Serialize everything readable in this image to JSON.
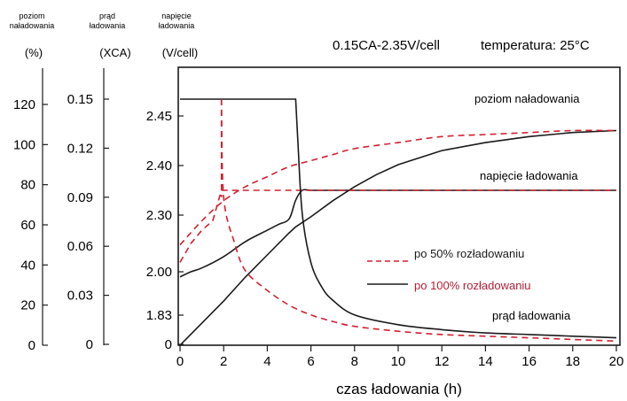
{
  "chart_data": {
    "type": "line",
    "title": "0.15CA-2.35V/cell",
    "temperature_label": "temperatura: 25°C",
    "xlabel": "czas ładowania (h)",
    "x_ticks": [
      "0",
      "2",
      "4",
      "6",
      "8",
      "10",
      "12",
      "14",
      "16",
      "18",
      "20"
    ],
    "xlim": [
      0,
      20
    ],
    "grid": false,
    "axes": {
      "charge_level": {
        "header": [
          "poziom",
          "naładowania"
        ],
        "unit": "(%)",
        "ticks": [
          "120",
          "100",
          "80",
          "60",
          "40",
          "20",
          "0"
        ],
        "values": [
          120,
          100,
          80,
          60,
          40,
          20,
          0
        ]
      },
      "charge_current": {
        "header": [
          "prąd",
          "ładowania"
        ],
        "unit": "(XCA)",
        "ticks": [
          "0.15",
          "0.12",
          "0.09",
          "0.06",
          "0.03",
          "0"
        ],
        "values": [
          0.15,
          0.12,
          0.09,
          0.06,
          0.03,
          0
        ]
      },
      "charge_voltage": {
        "header": [
          "napięcie",
          "ładowania"
        ],
        "unit": "(V/cell)",
        "ticks": [
          "2.45",
          "2.40",
          "2.30",
          "2.00",
          "1.83",
          "0"
        ],
        "values": [
          2.45,
          2.4,
          2.3,
          2.0,
          1.83,
          0
        ]
      }
    },
    "curve_labels": {
      "charge_level": "poziom naładowania",
      "voltage": "napięcie ładowania",
      "current": "prąd ładowania"
    },
    "legend": [
      {
        "name": "po 50% rozładowaniu",
        "style": "dashed",
        "color": "#d1202f",
        "text_color": "#1a1a1a"
      },
      {
        "name": "po 100% rozładowaniu",
        "style": "solid",
        "color": "#1a1a1a",
        "text_color": "#b01f35"
      }
    ],
    "series": [
      {
        "curve": "poziom naładowania",
        "variant": "po 100% rozładowaniu",
        "axis": "charge_level",
        "x": [
          0,
          1,
          2,
          3,
          4,
          5,
          5.3,
          6,
          7,
          8,
          9,
          10,
          12,
          14,
          16,
          18,
          20
        ],
        "y": [
          0,
          11,
          22,
          34,
          45,
          56,
          59,
          64,
          72,
          79,
          85,
          90,
          97,
          101,
          104,
          106,
          107
        ]
      },
      {
        "curve": "poziom naładowania",
        "variant": "po 50% rozładowaniu",
        "axis": "charge_level",
        "x": [
          0,
          1,
          2,
          3,
          4,
          5,
          6,
          7,
          8,
          10,
          12,
          14,
          16,
          18,
          20
        ],
        "y": [
          50,
          62,
          72,
          79,
          84,
          89,
          92,
          95,
          98,
          101,
          104,
          105,
          106,
          107,
          107
        ]
      },
      {
        "curve": "napięcie ładowania",
        "variant": "po 100% rozładowaniu",
        "axis": "charge_voltage",
        "x": [
          0,
          0.5,
          1,
          2,
          3,
          4,
          4.5,
          5,
          5.3,
          5.6,
          6,
          7,
          8,
          10,
          12,
          14,
          16,
          18,
          20
        ],
        "y": [
          1.98,
          2.0,
          2.02,
          2.08,
          2.16,
          2.22,
          2.25,
          2.28,
          2.33,
          2.35,
          2.35,
          2.35,
          2.35,
          2.35,
          2.35,
          2.35,
          2.35,
          2.35,
          2.35
        ]
      },
      {
        "curve": "napięcie ładowania",
        "variant": "po 50% rozładowaniu",
        "axis": "charge_voltage",
        "x": [
          0,
          0.5,
          1,
          1.5,
          1.9,
          2.5,
          3,
          4,
          5,
          6,
          8,
          10,
          20
        ],
        "y": [
          2.05,
          2.15,
          2.22,
          2.27,
          2.35,
          2.35,
          2.35,
          2.35,
          2.35,
          2.35,
          2.35,
          2.35,
          2.35
        ]
      },
      {
        "curve": "prąd ładowania",
        "variant": "po 100% rozładowaniu",
        "axis": "charge_current",
        "x": [
          0,
          5.3,
          5.4,
          5.6,
          6,
          6.5,
          7,
          8,
          10,
          12,
          14,
          16,
          18,
          20
        ],
        "y": [
          0.15,
          0.15,
          0.125,
          0.08,
          0.05,
          0.035,
          0.027,
          0.018,
          0.012,
          0.009,
          0.007,
          0.006,
          0.005,
          0.004
        ]
      },
      {
        "curve": "prąd ładowania",
        "variant": "po 50% rozładowaniu",
        "axis": "charge_current",
        "x": [
          1.9,
          2,
          2.5,
          3,
          4,
          5,
          6,
          7,
          8,
          10,
          12,
          14,
          16,
          18,
          20
        ],
        "y": [
          0.15,
          0.09,
          0.062,
          0.045,
          0.033,
          0.024,
          0.018,
          0.014,
          0.011,
          0.008,
          0.006,
          0.005,
          0.004,
          0.003,
          0.002
        ]
      }
    ],
    "current_dashed_drop": {
      "x": 1.9,
      "from": 0.15,
      "to": 0.09
    }
  }
}
